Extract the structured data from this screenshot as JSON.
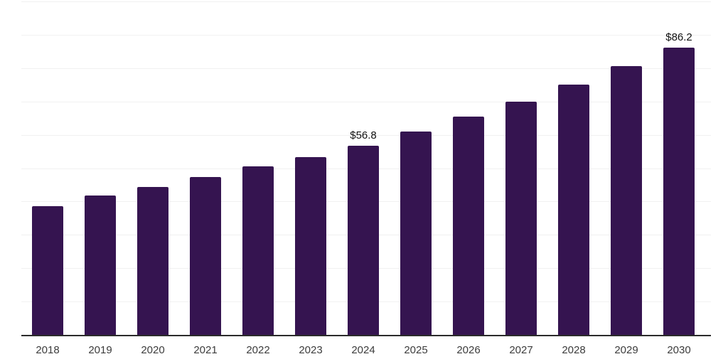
{
  "chart_data": {
    "type": "bar",
    "title": "",
    "xlabel": "",
    "ylabel": "",
    "categories": [
      "2018",
      "2019",
      "2020",
      "2021",
      "2022",
      "2023",
      "2024",
      "2025",
      "2026",
      "2027",
      "2028",
      "2029",
      "2030"
    ],
    "values": [
      38.6,
      41.7,
      44.4,
      47.4,
      50.6,
      53.3,
      56.8,
      61.0,
      65.4,
      70.0,
      75.1,
      80.7,
      86.2
    ],
    "value_labels": {
      "2024": "$56.8",
      "2030": "$86.2"
    },
    "ylim": [
      0,
      100
    ],
    "gridline_step": 10,
    "grid": "horizontal-only",
    "legend": "none",
    "colors": {
      "bar": "#351450",
      "gridline": "#f1f1f1",
      "axis_line": "#2b2b2b",
      "tick_label": "#3c3c3c",
      "value_label": "#111111",
      "background": "#ffffff"
    }
  }
}
